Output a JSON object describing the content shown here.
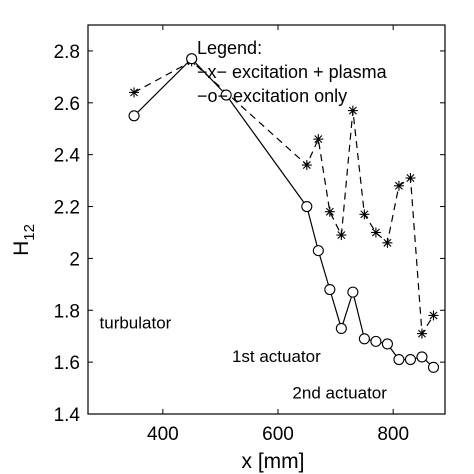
{
  "chart_data": {
    "type": "line",
    "xlabel": "x [mm]",
    "ylabel": "H",
    "ylabel_subscript": "12",
    "xlim": [
      270,
      890
    ],
    "ylim": [
      1.4,
      2.9
    ],
    "xticks": [
      400,
      600,
      800
    ],
    "xtick_labels": [
      "400",
      "600",
      "800"
    ],
    "yticks": [
      1.4,
      1.6,
      1.8,
      2.0,
      2.2,
      2.4,
      2.6,
      2.8
    ],
    "ytick_labels": [
      "1.4",
      "1.6",
      "1.8",
      "2",
      "2.2",
      "2.4",
      "2.6",
      "2.8"
    ],
    "grid": false,
    "legend": {
      "title": "Legend:",
      "placement": "top-right",
      "entries": [
        "−x− excitation + plasma",
        "−o− excitation only"
      ]
    },
    "series": [
      {
        "name": "excitation + plasma",
        "marker": "asterisk",
        "line": "dashed",
        "x": [
          350,
          450,
          650,
          670,
          690,
          710,
          730,
          750,
          770,
          790,
          810,
          830,
          850,
          870
        ],
        "y": [
          2.64,
          2.76,
          2.36,
          2.46,
          2.18,
          2.09,
          2.57,
          2.17,
          2.1,
          2.06,
          2.28,
          2.31,
          1.71,
          1.78
        ]
      },
      {
        "name": "excitation only",
        "marker": "circle",
        "line": "solid",
        "x": [
          350,
          450,
          510,
          650,
          670,
          690,
          710,
          730,
          750,
          770,
          790,
          810,
          830,
          850,
          870
        ],
        "y": [
          2.55,
          2.77,
          2.63,
          2.2,
          2.03,
          1.88,
          1.73,
          1.87,
          1.69,
          1.68,
          1.67,
          1.61,
          1.61,
          1.62,
          1.58
        ]
      }
    ],
    "annotations": [
      {
        "text": "turbulator",
        "x": 290,
        "y": 1.73
      },
      {
        "text": "1st actuator",
        "x": 520,
        "y": 1.6
      },
      {
        "text": "2nd actuator",
        "x": 625,
        "y": 1.46
      }
    ]
  }
}
